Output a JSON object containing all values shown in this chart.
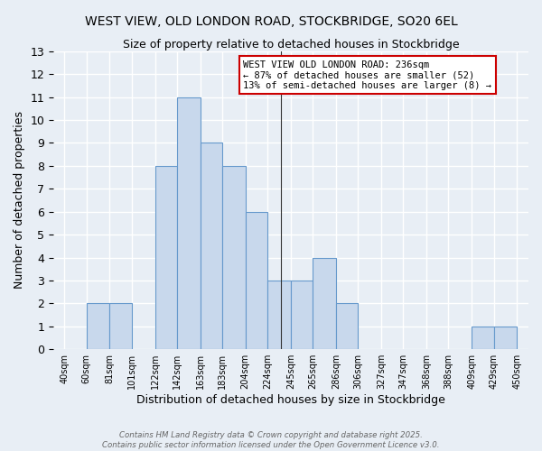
{
  "title": "WEST VIEW, OLD LONDON ROAD, STOCKBRIDGE, SO20 6EL",
  "subtitle": "Size of property relative to detached houses in Stockbridge",
  "xlabel": "Distribution of detached houses by size in Stockbridge",
  "ylabel": "Number of detached properties",
  "bar_labels": [
    "40sqm",
    "60sqm",
    "81sqm",
    "101sqm",
    "122sqm",
    "142sqm",
    "163sqm",
    "183sqm",
    "204sqm",
    "224sqm",
    "245sqm",
    "265sqm",
    "286sqm",
    "306sqm",
    "327sqm",
    "347sqm",
    "368sqm",
    "388sqm",
    "409sqm",
    "429sqm",
    "450sqm"
  ],
  "bar_heights": [
    0,
    2,
    2,
    0,
    8,
    11,
    9,
    8,
    6,
    3,
    3,
    4,
    2,
    0,
    0,
    0,
    0,
    0,
    1,
    1,
    0
  ],
  "bar_color": "#c8d8ec",
  "bar_edge_color": "#6699cc",
  "ylim": [
    0,
    13
  ],
  "yticks": [
    0,
    1,
    2,
    3,
    4,
    5,
    6,
    7,
    8,
    9,
    10,
    11,
    12,
    13
  ],
  "annotation_title": "WEST VIEW OLD LONDON ROAD: 236sqm",
  "annotation_line2": "← 87% of detached houses are smaller (52)",
  "annotation_line3": "13% of semi-detached houses are larger (8) →",
  "annotation_box_color": "#ffffff",
  "annotation_border_color": "#cc0000",
  "footer_line1": "Contains HM Land Registry data © Crown copyright and database right 2025.",
  "footer_line2": "Contains public sector information licensed under the Open Government Licence v3.0.",
  "bg_color": "#e8eef5",
  "grid_color": "#ffffff",
  "property_size": 236,
  "bin_edges": [
    40,
    60,
    81,
    101,
    122,
    142,
    163,
    183,
    204,
    224,
    245,
    265,
    286,
    306,
    327,
    347,
    368,
    388,
    409,
    429,
    450
  ]
}
